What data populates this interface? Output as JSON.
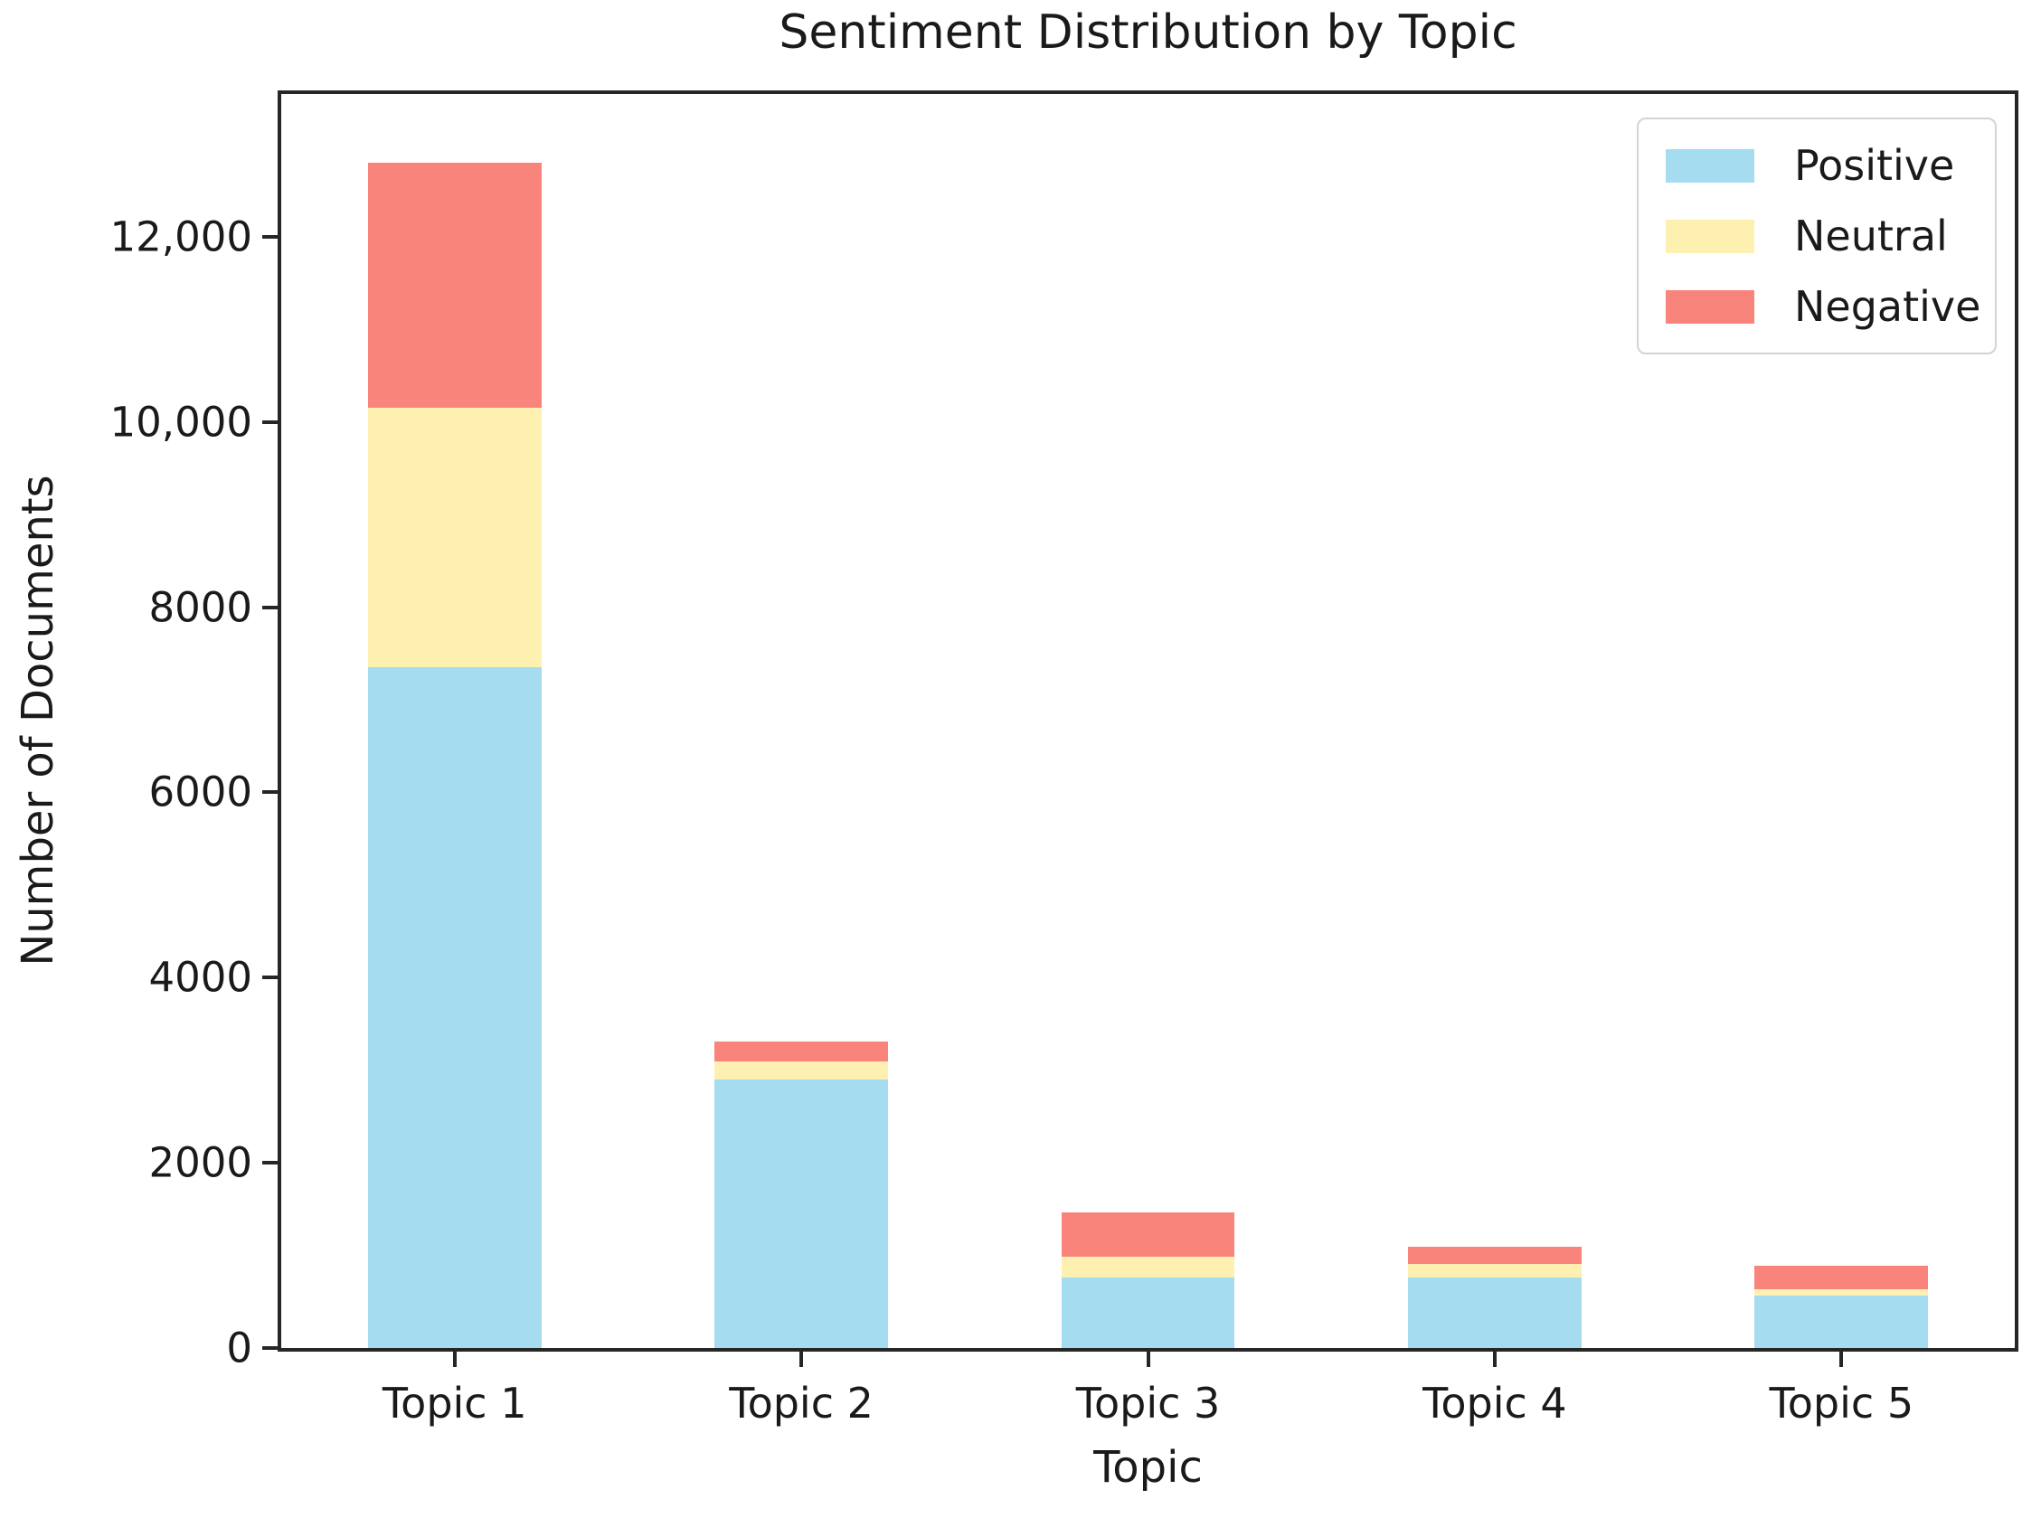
{
  "chart_data": {
    "type": "bar",
    "stacked": true,
    "title": "Sentiment Distribution by Topic",
    "xlabel": "Topic",
    "ylabel": "Number of Documents",
    "categories": [
      "Topic 1",
      "Topic 2",
      "Topic 3",
      "Topic 4",
      "Topic 5"
    ],
    "series": [
      {
        "name": "Positive",
        "color": "#A6DCEF",
        "values": [
          7350,
          2900,
          760,
          760,
          570
        ]
      },
      {
        "name": "Neutral",
        "color": "#FEF0B0",
        "values": [
          2800,
          190,
          230,
          150,
          60
        ]
      },
      {
        "name": "Negative",
        "color": "#F9847B",
        "values": [
          2650,
          220,
          470,
          180,
          260
        ]
      }
    ],
    "totals": [
      12800,
      3310,
      1460,
      1090,
      890
    ],
    "ylim": [
      0,
      13540
    ],
    "yticks": [
      {
        "value": 0,
        "label": "0"
      },
      {
        "value": 2000,
        "label": "2000"
      },
      {
        "value": 4000,
        "label": "4000"
      },
      {
        "value": 6000,
        "label": "6000"
      },
      {
        "value": 8000,
        "label": "8000"
      },
      {
        "value": 10000,
        "label": "10,000"
      },
      {
        "value": 12000,
        "label": "12,000"
      }
    ],
    "grid": false,
    "legend_position": "upper right",
    "spine_color": "#262626",
    "text_color": "#1a1a1a"
  }
}
